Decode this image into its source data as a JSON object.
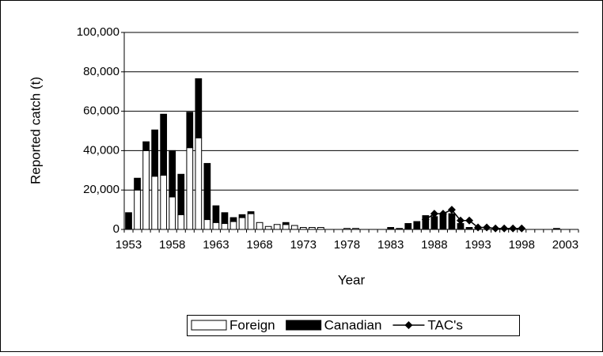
{
  "chart_data": {
    "type": "stacked-bar-line",
    "xlabel": "Year",
    "ylabel": "Reported catch (t)",
    "categories": [
      "1953",
      null,
      null,
      null,
      null,
      "1958",
      null,
      null,
      null,
      null,
      "1963",
      null,
      null,
      null,
      null,
      "1968",
      null,
      null,
      null,
      null,
      "1973",
      null,
      null,
      null,
      null,
      "1978",
      null,
      null,
      null,
      null,
      "1983",
      null,
      null,
      null,
      null,
      "1988",
      null,
      null,
      null,
      null,
      "1993",
      null,
      null,
      null,
      null,
      "1998",
      null,
      null,
      null,
      null,
      "2003",
      null
    ],
    "series": [
      {
        "name": "Foreign",
        "color": "#ffffff",
        "values": [
          0,
          20000,
          40000,
          27000,
          27500,
          16500,
          7500,
          41500,
          46500,
          5000,
          3500,
          3000,
          4000,
          6000,
          8000,
          3500,
          1500,
          2500,
          2500,
          2000,
          1000,
          1000,
          1000,
          0,
          0,
          500,
          500,
          0,
          0,
          0,
          0,
          0,
          0,
          0,
          0,
          0,
          0,
          0,
          0,
          0,
          0,
          0,
          0,
          0,
          0,
          0,
          0,
          0,
          0,
          0,
          0,
          0
        ]
      },
      {
        "name": "Canadian",
        "color": "#000000",
        "values": [
          8500,
          6000,
          4500,
          23500,
          31000,
          23500,
          20500,
          18000,
          30000,
          28500,
          8500,
          5500,
          2000,
          1500,
          1000,
          0,
          0,
          0,
          1000,
          0,
          0,
          0,
          0,
          0,
          0,
          0,
          0,
          0,
          0,
          0,
          1000,
          500,
          3000,
          4000,
          7000,
          6500,
          7500,
          8000,
          3000,
          1000,
          1000,
          0,
          0,
          0,
          0,
          0,
          0,
          0,
          0,
          500,
          0,
          0
        ]
      },
      {
        "name": "TAC's",
        "color": "#000000",
        "kind": "line",
        "values": [
          null,
          null,
          null,
          null,
          null,
          null,
          null,
          null,
          null,
          null,
          null,
          null,
          null,
          null,
          null,
          null,
          null,
          null,
          null,
          null,
          null,
          null,
          null,
          null,
          null,
          null,
          null,
          null,
          null,
          null,
          null,
          null,
          null,
          null,
          5000,
          8000,
          8000,
          10000,
          4500,
          4500,
          1000,
          1000,
          500,
          500,
          500,
          500,
          null,
          null,
          null,
          null,
          null,
          null
        ]
      }
    ],
    "ylim": [
      0,
      100000
    ],
    "yticks": [
      0,
      {
        "value": 20000,
        "label": "20,000"
      },
      {
        "value": 40000,
        "label": "40,000"
      },
      {
        "value": 60000,
        "label": "60,000"
      },
      {
        "value": 80000,
        "label": "80,000"
      },
      {
        "value": 100000,
        "label": "100,000"
      }
    ],
    "grid": true,
    "legend": "bottom"
  }
}
